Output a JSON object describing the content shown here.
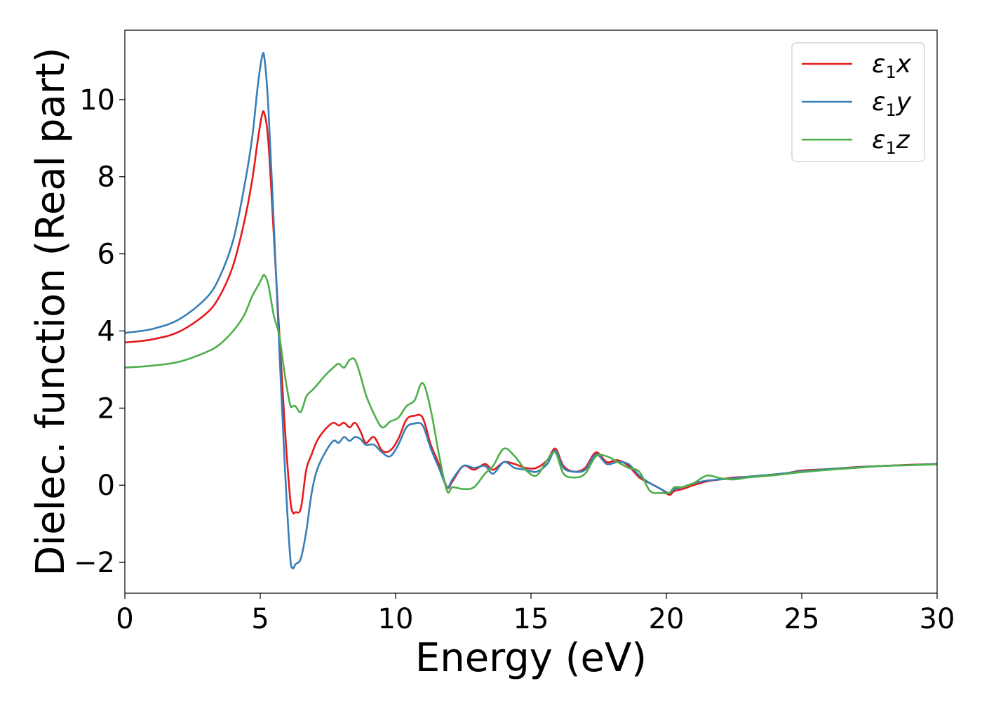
{
  "chart_data": {
    "type": "line",
    "title": "",
    "xlabel": "Energy (eV)",
    "ylabel": "Dielec. function (Real part)",
    "xlim": [
      0,
      30
    ],
    "ylim": [
      -2.8,
      11.8
    ],
    "xticks": [
      0,
      5,
      10,
      15,
      20,
      25,
      30
    ],
    "xtick_labels": [
      "0",
      "5",
      "10",
      "15",
      "20",
      "25",
      "30"
    ],
    "yticks": [
      -2,
      0,
      2,
      4,
      6,
      8,
      10
    ],
    "ytick_labels": [
      "−2",
      "0",
      "2",
      "4",
      "6",
      "8",
      "10"
    ],
    "grid": false,
    "legend_position": "top-right",
    "series": [
      {
        "name": "ε₁x",
        "name_base": "ε",
        "name_sub": "1",
        "name_var": "x",
        "color": "#e41a1c",
        "x": [
          0,
          1,
          2,
          3,
          3.5,
          4,
          4.4,
          4.7,
          4.9,
          5.05,
          5.15,
          5.3,
          5.5,
          5.7,
          5.9,
          6.1,
          6.2,
          6.3,
          6.5,
          6.7,
          6.9,
          7.1,
          7.4,
          7.7,
          7.9,
          8.1,
          8.3,
          8.5,
          8.7,
          8.9,
          9.2,
          9.5,
          9.8,
          10.1,
          10.4,
          10.7,
          11.0,
          11.3,
          11.6,
          11.9,
          12.1,
          12.5,
          12.9,
          13.3,
          13.6,
          14.0,
          14.4,
          14.8,
          15.2,
          15.6,
          15.9,
          16.2,
          16.6,
          17.0,
          17.4,
          17.8,
          18.2,
          18.6,
          19.0,
          19.4,
          19.8,
          20.1,
          20.3,
          20.6,
          21.0,
          21.5,
          22.0,
          22.5,
          23.0,
          23.5,
          24.0,
          24.5,
          25.0,
          26.0,
          27.0,
          28.0,
          29.0,
          30.0
        ],
        "y": [
          3.7,
          3.78,
          3.98,
          4.45,
          4.9,
          5.7,
          6.8,
          7.9,
          8.9,
          9.55,
          9.65,
          8.9,
          6.5,
          4.0,
          1.6,
          -0.3,
          -0.7,
          -0.7,
          -0.6,
          0.4,
          0.8,
          1.15,
          1.45,
          1.62,
          1.55,
          1.62,
          1.5,
          1.62,
          1.4,
          1.1,
          1.25,
          0.9,
          0.9,
          1.2,
          1.7,
          1.8,
          1.75,
          1.05,
          0.55,
          -0.05,
          0.1,
          0.5,
          0.4,
          0.55,
          0.4,
          0.6,
          0.55,
          0.45,
          0.45,
          0.65,
          0.95,
          0.5,
          0.35,
          0.45,
          0.85,
          0.6,
          0.65,
          0.5,
          0.2,
          0.05,
          -0.1,
          -0.25,
          -0.15,
          -0.1,
          0.0,
          0.1,
          0.15,
          0.2,
          0.22,
          0.25,
          0.28,
          0.32,
          0.38,
          0.42,
          0.47,
          0.5,
          0.53,
          0.55
        ]
      },
      {
        "name": "ε₁y",
        "name_base": "ε",
        "name_sub": "1",
        "name_var": "y",
        "color": "#377eb8",
        "x": [
          0,
          1,
          2,
          3,
          3.5,
          4,
          4.4,
          4.7,
          4.9,
          5.05,
          5.15,
          5.3,
          5.5,
          5.7,
          5.9,
          6.1,
          6.2,
          6.3,
          6.5,
          6.7,
          6.9,
          7.1,
          7.4,
          7.7,
          7.9,
          8.1,
          8.3,
          8.5,
          8.7,
          8.9,
          9.2,
          9.5,
          9.8,
          10.1,
          10.4,
          10.7,
          11.0,
          11.3,
          11.6,
          11.9,
          12.1,
          12.5,
          12.9,
          13.3,
          13.6,
          14.0,
          14.4,
          14.8,
          15.2,
          15.6,
          15.9,
          16.2,
          16.6,
          17.0,
          17.4,
          17.8,
          18.2,
          18.6,
          19.0,
          19.4,
          19.8,
          20.1,
          20.3,
          20.6,
          21.0,
          21.5,
          22.0,
          22.5,
          23.0,
          23.5,
          24.0,
          24.5,
          25.0,
          26.0,
          27.0,
          28.0,
          29.0,
          30.0
        ],
        "y": [
          3.95,
          4.05,
          4.3,
          4.85,
          5.4,
          6.35,
          7.7,
          9.0,
          10.3,
          11.05,
          11.1,
          9.8,
          6.8,
          3.6,
          0.6,
          -1.8,
          -2.15,
          -2.05,
          -1.9,
          -1.2,
          -0.2,
          0.4,
          0.85,
          1.15,
          1.1,
          1.25,
          1.15,
          1.25,
          1.2,
          1.05,
          1.05,
          0.85,
          0.75,
          1.05,
          1.5,
          1.6,
          1.55,
          0.95,
          0.45,
          -0.05,
          0.15,
          0.5,
          0.45,
          0.5,
          0.3,
          0.6,
          0.45,
          0.4,
          0.35,
          0.55,
          0.9,
          0.45,
          0.35,
          0.4,
          0.8,
          0.55,
          0.6,
          0.55,
          0.25,
          0.05,
          -0.1,
          -0.2,
          -0.1,
          -0.05,
          0.05,
          0.12,
          0.15,
          0.18,
          0.22,
          0.25,
          0.28,
          0.32,
          0.36,
          0.42,
          0.46,
          0.5,
          0.52,
          0.55
        ]
      },
      {
        "name": "ε₁z",
        "name_base": "ε",
        "name_sub": "1",
        "name_var": "z",
        "color": "#4daf4a",
        "x": [
          0,
          1,
          2,
          3,
          3.5,
          4,
          4.4,
          4.7,
          4.9,
          5.05,
          5.15,
          5.3,
          5.5,
          5.7,
          5.9,
          6.1,
          6.2,
          6.3,
          6.5,
          6.7,
          6.9,
          7.1,
          7.4,
          7.7,
          7.9,
          8.1,
          8.3,
          8.5,
          8.7,
          8.9,
          9.2,
          9.5,
          9.8,
          10.1,
          10.4,
          10.7,
          11.0,
          11.3,
          11.6,
          11.9,
          12.1,
          12.5,
          12.9,
          13.3,
          13.6,
          14.0,
          14.4,
          14.8,
          15.2,
          15.6,
          15.9,
          16.2,
          16.6,
          17.0,
          17.4,
          17.8,
          18.2,
          18.6,
          19.0,
          19.4,
          19.8,
          20.1,
          20.3,
          20.6,
          21.0,
          21.5,
          22.0,
          22.5,
          23.0,
          23.5,
          24.0,
          24.5,
          25.0,
          26.0,
          27.0,
          28.0,
          29.0,
          30.0
        ],
        "y": [
          3.05,
          3.1,
          3.2,
          3.45,
          3.65,
          4.0,
          4.4,
          4.9,
          5.15,
          5.35,
          5.45,
          5.2,
          4.4,
          3.9,
          2.9,
          2.1,
          2.05,
          2.05,
          1.9,
          2.3,
          2.45,
          2.6,
          2.85,
          3.05,
          3.15,
          3.05,
          3.25,
          3.25,
          2.85,
          2.35,
          1.85,
          1.5,
          1.65,
          1.75,
          2.05,
          2.2,
          2.65,
          1.95,
          0.8,
          -0.15,
          -0.05,
          -0.1,
          -0.05,
          0.3,
          0.5,
          0.95,
          0.75,
          0.4,
          0.25,
          0.65,
          0.85,
          0.3,
          0.2,
          0.3,
          0.75,
          0.75,
          0.6,
          0.45,
          0.35,
          -0.15,
          -0.2,
          -0.2,
          -0.05,
          -0.05,
          0.05,
          0.25,
          0.18,
          0.15,
          0.2,
          0.23,
          0.26,
          0.3,
          0.34,
          0.4,
          0.45,
          0.5,
          0.52,
          0.54
        ]
      }
    ]
  }
}
